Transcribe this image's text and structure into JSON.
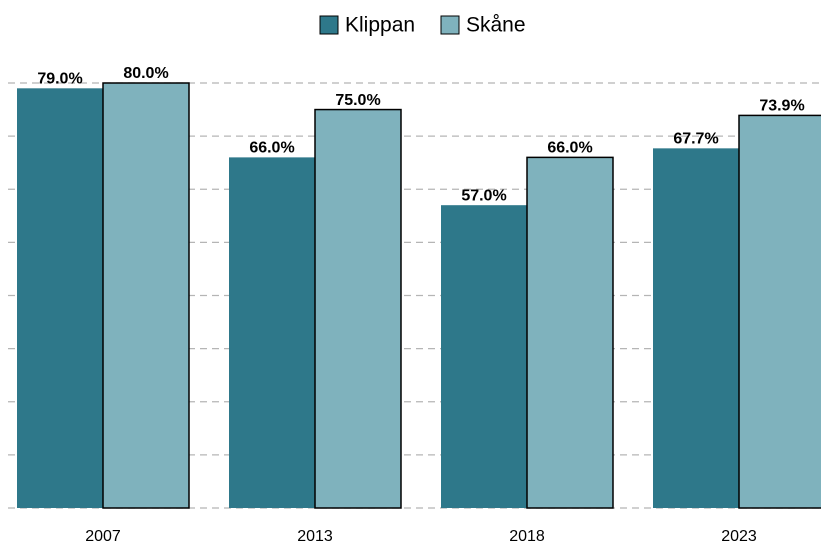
{
  "chart_data": {
    "type": "bar",
    "categories": [
      "2007",
      "2013",
      "2018",
      "2023"
    ],
    "series": [
      {
        "name": "Klippan",
        "color": "#2e788a",
        "values": [
          79.0,
          66.0,
          57.0,
          67.7
        ],
        "value_labels": [
          "79.0%",
          "66.0%",
          "57.0%",
          "67.7%"
        ]
      },
      {
        "name": "Skåne",
        "color": "#7fb2bd",
        "values": [
          80.0,
          75.0,
          66.0,
          73.9
        ],
        "value_labels": [
          "80.0%",
          "75.0%",
          "66.0%",
          "73.9%"
        ]
      }
    ],
    "ylim": [
      0,
      80
    ],
    "yticks": [
      0,
      10,
      20,
      30,
      40,
      50,
      60,
      70,
      80
    ],
    "grid": true,
    "legend": "top"
  }
}
